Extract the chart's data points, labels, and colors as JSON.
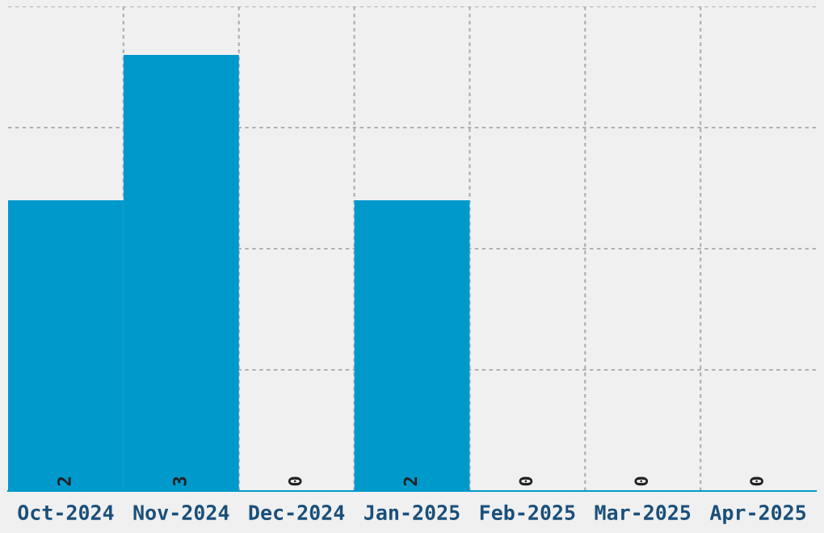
{
  "chart_data": {
    "type": "bar",
    "categories": [
      "Oct-2024",
      "Nov-2024",
      "Dec-2024",
      "Jan-2025",
      "Feb-2025",
      "Mar-2025",
      "Apr-2025"
    ],
    "values": [
      2,
      3,
      0,
      2,
      0,
      0,
      0
    ],
    "color": "#0099cc",
    "data_labels": true,
    "grid": true,
    "ylim": [
      0,
      3.3333
    ],
    "yticks": [
      {
        "value": 0.8333,
        "label": null
      },
      {
        "value": 1.6667,
        "label": null
      },
      {
        "value": 2.5,
        "label": null
      },
      {
        "value": 3.3333,
        "label": null
      }
    ]
  }
}
